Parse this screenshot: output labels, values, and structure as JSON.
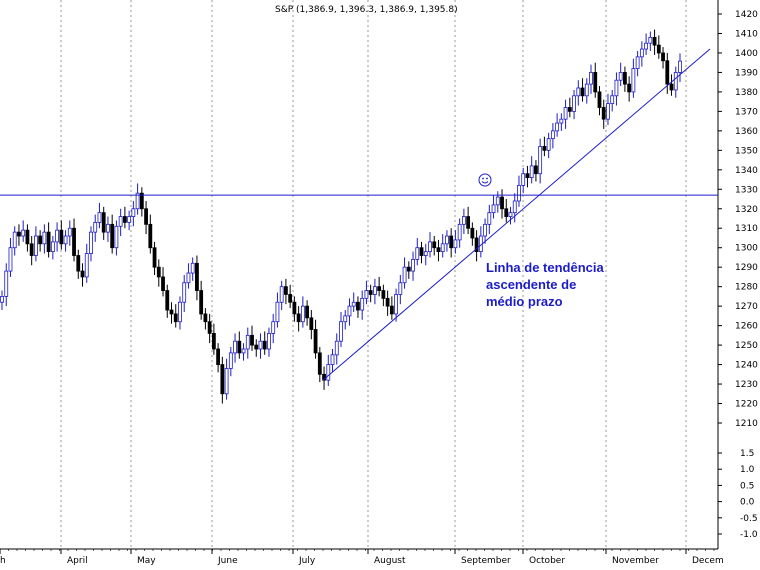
{
  "chart_data": {
    "type": "candlestick",
    "title": "S&P (1,386.9, 1,396.3, 1,386.9, 1,395.8)",
    "y_axis_price": {
      "ticks": [
        1210,
        1220,
        1230,
        1240,
        1250,
        1260,
        1270,
        1280,
        1290,
        1300,
        1310,
        1320,
        1330,
        1340,
        1350,
        1360,
        1370,
        1380,
        1390,
        1400,
        1410,
        1420
      ],
      "range": [
        1202,
        1427
      ]
    },
    "y_axis_lower": {
      "ticks": [
        "1.5",
        "1.0",
        "0.5",
        "0.0",
        "-0.5",
        "-1.0"
      ]
    },
    "x_axis": {
      "labels": [
        "h",
        "April",
        "May",
        "June",
        "July",
        "August",
        "September",
        "October",
        "November",
        "Decem"
      ]
    },
    "horizontal_line": {
      "value": 1327
    },
    "trendline": {
      "start": {
        "label": "July",
        "value": 1232
      },
      "end": {
        "label": "Decem",
        "value": 1402
      }
    },
    "annotation": [
      "Linha de tendência",
      "ascendente de",
      "médio prazo"
    ],
    "smiley_icon": "smiley-face-icon",
    "colors": {
      "line": "#1c1cc8",
      "up_bar": "#1c1cc8",
      "down_bar": "#000000",
      "grid": "#bbbbbb"
    },
    "close_series": [
      1275,
      1288,
      1300,
      1308,
      1306,
      1309,
      1302,
      1296,
      1306,
      1302,
      1308,
      1298,
      1303,
      1309,
      1302,
      1306,
      1310,
      1296,
      1288,
      1285,
      1297,
      1308,
      1313,
      1318,
      1308,
      1312,
      1300,
      1311,
      1316,
      1313,
      1316,
      1320,
      1328,
      1320,
      1312,
      1300,
      1290,
      1285,
      1278,
      1268,
      1266,
      1262,
      1272,
      1282,
      1287,
      1292,
      1278,
      1266,
      1262,
      1256,
      1248,
      1240,
      1225,
      1238,
      1246,
      1252,
      1246,
      1248,
      1255,
      1250,
      1248,
      1252,
      1248,
      1256,
      1262,
      1272,
      1280,
      1276,
      1272,
      1266,
      1262,
      1270,
      1264,
      1258,
      1246,
      1235,
      1232,
      1240,
      1245,
      1252,
      1262,
      1265,
      1270,
      1272,
      1268,
      1274,
      1278,
      1276,
      1280,
      1278,
      1274,
      1270,
      1266,
      1276,
      1282,
      1290,
      1288,
      1294,
      1300,
      1296,
      1298,
      1303,
      1300,
      1298,
      1302,
      1306,
      1300,
      1304,
      1312,
      1316,
      1310,
      1305,
      1298,
      1306,
      1312,
      1318,
      1322,
      1326,
      1320,
      1316,
      1318,
      1324,
      1332,
      1338,
      1336,
      1342,
      1338,
      1352,
      1350,
      1356,
      1360,
      1364,
      1366,
      1372,
      1370,
      1378,
      1382,
      1378,
      1384,
      1390,
      1380,
      1372,
      1366,
      1374,
      1378,
      1386,
      1390,
      1384,
      1380,
      1392,
      1398,
      1402,
      1405,
      1408,
      1404,
      1400,
      1396,
      1384,
      1381,
      1390,
      1395.8
    ]
  }
}
